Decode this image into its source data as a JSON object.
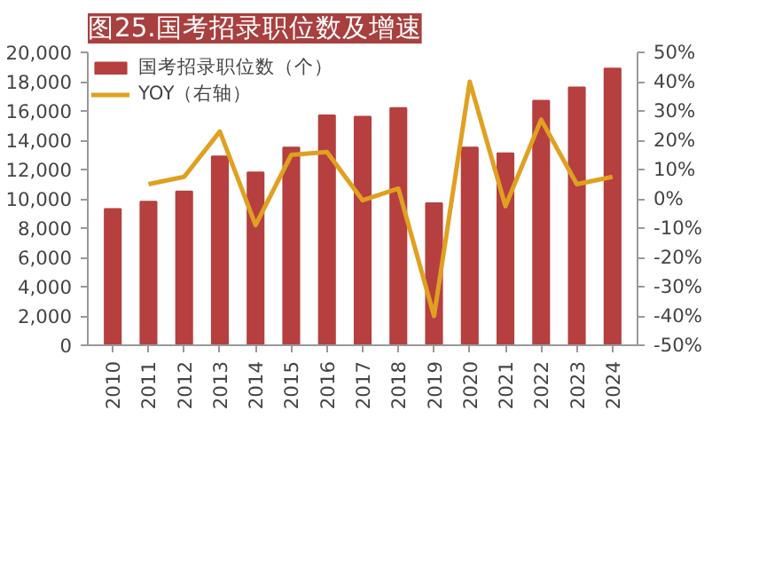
{
  "chart_data": {
    "type": "bar",
    "title": "图25.国考招录职位数及增速",
    "categories": [
      "2010",
      "2011",
      "2012",
      "2013",
      "2014",
      "2015",
      "2016",
      "2017",
      "2018",
      "2019",
      "2020",
      "2021",
      "2022",
      "2023",
      "2024"
    ],
    "series": [
      {
        "name": "国考招录职位数（个）",
        "color": "#b5403f",
        "values": [
          9300,
          9800,
          10500,
          12900,
          11800,
          13500,
          15700,
          15600,
          16200,
          9700,
          13500,
          13100,
          16700,
          17600,
          18900
        ]
      },
      {
        "name": "YOY（右轴）",
        "type": "line",
        "axis": "y2",
        "color": "#e0a020",
        "values": [
          null,
          5,
          7.5,
          23,
          -9,
          15,
          16,
          -0.5,
          3.5,
          -40,
          40,
          -2.5,
          27,
          5,
          7.5
        ]
      }
    ],
    "ylim": [
      0,
      20000
    ],
    "yticks": [
      {
        "value": 0,
        "label": "0"
      },
      {
        "value": 2000,
        "label": "2,000"
      },
      {
        "value": 4000,
        "label": "4,000"
      },
      {
        "value": 6000,
        "label": "6,000"
      },
      {
        "value": 8000,
        "label": "8,000"
      },
      {
        "value": 10000,
        "label": "10,000"
      },
      {
        "value": 12000,
        "label": "12,000"
      },
      {
        "value": 14000,
        "label": "14,000"
      },
      {
        "value": 16000,
        "label": "16,000"
      },
      {
        "value": 18000,
        "label": "18,000"
      },
      {
        "value": 20000,
        "label": "20,000"
      }
    ],
    "y2lim": [
      -50,
      50
    ],
    "y2ticks": [
      {
        "value": -50,
        "label": "-50%"
      },
      {
        "value": -40,
        "label": "-40%"
      },
      {
        "value": -30,
        "label": "-30%"
      },
      {
        "value": -20,
        "label": "-20%"
      },
      {
        "value": -10,
        "label": "-10%"
      },
      {
        "value": 0,
        "label": "0%"
      },
      {
        "value": 10,
        "label": "10%"
      },
      {
        "value": 20,
        "label": "20%"
      },
      {
        "value": 30,
        "label": "30%"
      },
      {
        "value": 40,
        "label": "40%"
      },
      {
        "value": 50,
        "label": "50%"
      }
    ],
    "grid": false,
    "legend": "top left"
  }
}
